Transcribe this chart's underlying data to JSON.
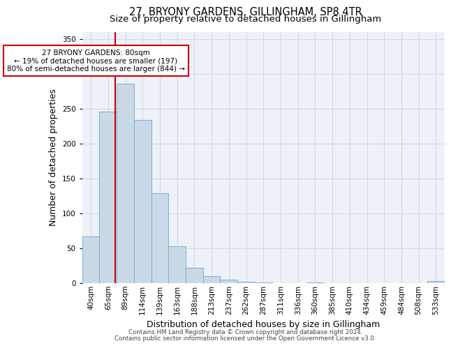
{
  "title": "27, BRYONY GARDENS, GILLINGHAM, SP8 4TR",
  "subtitle": "Size of property relative to detached houses in Gillingham",
  "xlabel": "Distribution of detached houses by size in Gillingham",
  "ylabel": "Number of detached properties",
  "bar_labels": [
    "40sqm",
    "65sqm",
    "89sqm",
    "114sqm",
    "139sqm",
    "163sqm",
    "188sqm",
    "213sqm",
    "237sqm",
    "262sqm",
    "287sqm",
    "311sqm",
    "336sqm",
    "360sqm",
    "385sqm",
    "410sqm",
    "434sqm",
    "459sqm",
    "484sqm",
    "508sqm",
    "533sqm"
  ],
  "bar_values": [
    67,
    246,
    286,
    234,
    129,
    53,
    22,
    10,
    5,
    2,
    1,
    0,
    0,
    1,
    0,
    0,
    0,
    0,
    0,
    0,
    3
  ],
  "bar_color": "#c9d9e8",
  "bar_edgecolor": "#7bafd4",
  "property_label": "27 BRYONY GARDENS: 80sqm",
  "annotation_line1": "← 19% of detached houses are smaller (197)",
  "annotation_line2": "80% of semi-detached houses are larger (844) →",
  "vline_color": "#cc0000",
  "vline_x": 1.4,
  "footer_line1": "Contains HM Land Registry data © Crown copyright and database right 2024.",
  "footer_line2": "Contains public sector information licensed under the Open Government Licence v3.0.",
  "ylim": [
    0,
    360
  ],
  "yticks": [
    0,
    50,
    100,
    150,
    200,
    250,
    300,
    350
  ],
  "grid_color": "#d0d8e8",
  "bg_color": "#eef2f8",
  "title_fontsize": 10.5,
  "subtitle_fontsize": 9.5,
  "axis_label_fontsize": 9,
  "tick_fontsize": 7.5,
  "footer_fontsize": 6.2
}
